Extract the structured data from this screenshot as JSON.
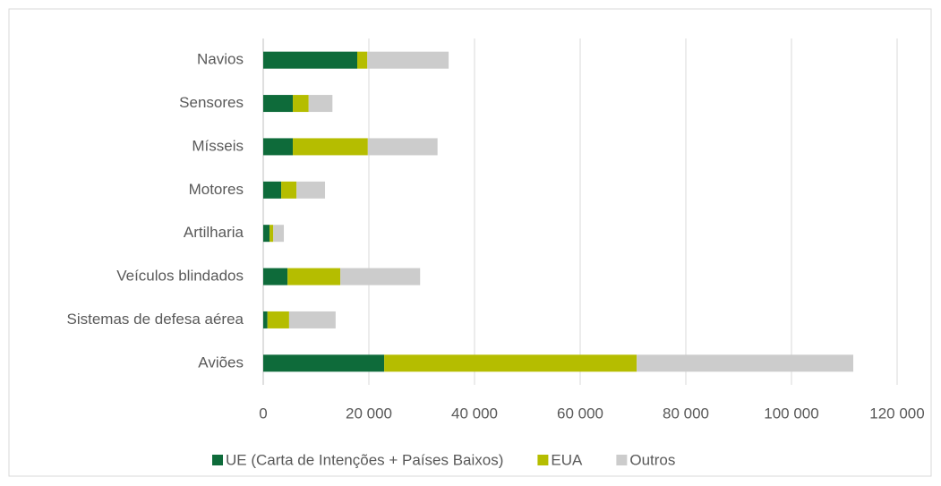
{
  "chart_data": {
    "type": "stacked_barh",
    "categories": [
      "Navios",
      "Sensores",
      "Mísseis",
      "Motores",
      "Artilharia",
      "Veículos blindados",
      "Sistemas de defesa aérea",
      "Aviões"
    ],
    "series": [
      {
        "name": "UE (Carta de Intenções + Países Baixos)",
        "color": "#0e6b3a",
        "values": [
          17800,
          5600,
          5600,
          3400,
          1200,
          4600,
          800,
          22900
        ]
      },
      {
        "name": "EUA",
        "color": "#b5bd00",
        "values": [
          1900,
          3000,
          14200,
          2900,
          700,
          10000,
          4100,
          47800
        ]
      },
      {
        "name": "Outros",
        "color": "#cccccc",
        "values": [
          15400,
          4500,
          13200,
          5400,
          2000,
          15100,
          8800,
          41000
        ]
      }
    ],
    "xlim": [
      0,
      120000
    ],
    "xticks": [
      0,
      {
        "value": 20000,
        "label": "20 000"
      },
      {
        "value": 40000,
        "label": "40 000"
      },
      {
        "value": 60000,
        "label": "60 000"
      },
      {
        "value": 80000,
        "label": "80 000"
      },
      {
        "value": 100000,
        "label": "100 000"
      },
      {
        "value": 120000,
        "label": "120 000"
      }
    ],
    "grid": true,
    "legend": "bottom"
  }
}
